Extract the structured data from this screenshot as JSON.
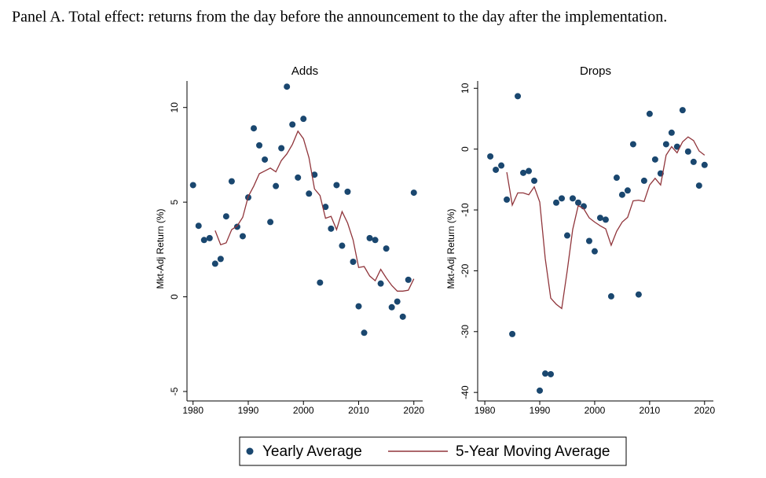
{
  "title": "Panel A. Total effect: returns from the day before the announcement to the day after the implementation.",
  "chart_data": [
    {
      "type": "scatter",
      "title": "Adds",
      "y_label": "Mkt-Adj Return (%)",
      "x": [
        1980,
        1981,
        1982,
        1983,
        1984,
        1985,
        1986,
        1987,
        1988,
        1989,
        1990,
        1991,
        1992,
        1993,
        1994,
        1995,
        1996,
        1997,
        1998,
        1999,
        2000,
        2001,
        2002,
        2003,
        2004,
        2005,
        2006,
        2007,
        2008,
        2009,
        2010,
        2011,
        2012,
        2013,
        2014,
        2015,
        2016,
        2017,
        2018,
        2019,
        2020
      ],
      "series": [
        {
          "name": "Yearly Average",
          "type": "scatter",
          "color": "#1a476f",
          "values": [
            5.9,
            3.75,
            3.0,
            3.1,
            1.75,
            2.0,
            4.25,
            6.1,
            3.7,
            3.2,
            5.25,
            8.9,
            8.0,
            7.25,
            3.95,
            5.85,
            7.85,
            11.1,
            9.1,
            6.3,
            9.4,
            5.45,
            6.45,
            0.75,
            4.75,
            3.6,
            5.9,
            2.7,
            5.55,
            1.85,
            -0.5,
            -1.9,
            3.1,
            3.0,
            0.7,
            2.55,
            -0.55,
            -0.25,
            -1.05,
            0.9,
            5.5
          ]
        },
        {
          "name": "5-Year Moving Average",
          "type": "line",
          "color": "#90353b",
          "values": [
            null,
            null,
            null,
            null,
            3.5,
            2.75,
            2.85,
            3.55,
            3.75,
            4.2,
            5.3,
            5.85,
            6.5,
            6.65,
            6.8,
            6.6,
            7.2,
            7.55,
            8.05,
            8.75,
            8.35,
            7.35,
            5.7,
            5.35,
            4.15,
            4.25,
            3.55,
            4.5,
            3.9,
            3.0,
            1.55,
            1.6,
            1.1,
            0.85,
            1.45,
            1.0,
            0.6,
            0.3,
            0.3,
            0.35,
            0.95
          ]
        }
      ],
      "xlim": [
        1978.9,
        2021.6
      ],
      "xticks": [
        1980,
        1990,
        2000,
        2010,
        2020
      ],
      "ylim": [
        -5.5,
        11.4
      ],
      "yticks": [
        -5,
        0,
        5,
        10
      ],
      "grid": false
    },
    {
      "type": "scatter",
      "title": "Drops",
      "y_label": "Mkt-Adj Return (%)",
      "x": [
        1981,
        1982,
        1983,
        1984,
        1985,
        1986,
        1987,
        1988,
        1989,
        1990,
        1991,
        1992,
        1993,
        1994,
        1995,
        1996,
        1997,
        1998,
        1999,
        2000,
        2001,
        2002,
        2003,
        2004,
        2005,
        2006,
        2007,
        2008,
        2009,
        2010,
        2011,
        2012,
        2013,
        2014,
        2015,
        2016,
        2017,
        2018,
        2019,
        2020
      ],
      "series": [
        {
          "name": "Yearly Average",
          "type": "scatter",
          "color": "#1a476f",
          "values": [
            -1.2,
            -3.4,
            -2.7,
            -8.3,
            -30.4,
            8.7,
            -3.9,
            -3.6,
            -5.2,
            -39.7,
            -36.9,
            -37.0,
            -8.8,
            -8.1,
            -14.2,
            -8.1,
            -8.8,
            -9.4,
            -15.1,
            -16.8,
            -11.3,
            -11.6,
            -24.2,
            -4.7,
            -7.5,
            -6.8,
            0.8,
            -23.9,
            -5.2,
            5.8,
            -1.7,
            -4.0,
            0.8,
            2.7,
            0.4,
            6.4,
            -0.4,
            -2.1,
            -6.0,
            -2.6
          ]
        },
        {
          "name": "5-Year Moving Average",
          "type": "line",
          "color": "#90353b",
          "values": [
            null,
            null,
            null,
            -3.8,
            -9.2,
            -7.2,
            -7.2,
            -7.5,
            -6.2,
            -8.7,
            -18,
            -24.5,
            -25.5,
            -26.2,
            -20,
            -13.2,
            -9.3,
            -9.8,
            -11.3,
            -12,
            -12.6,
            -13.1,
            -15.8,
            -13.5,
            -12,
            -11.2,
            -8.5,
            -8.4,
            -8.6,
            -5.9,
            -4.8,
            -5.9,
            -1,
            0.4,
            -0.6,
            1.2,
            2,
            1.4,
            -0.3,
            -1
          ]
        }
      ],
      "xlim": [
        1978.7,
        2021.6
      ],
      "xticks": [
        1980,
        1990,
        2000,
        2010,
        2020
      ],
      "ylim": [
        -41.4,
        11.2
      ],
      "yticks": [
        -40,
        -30,
        -20,
        -10,
        0,
        10
      ],
      "grid": false
    }
  ]
}
